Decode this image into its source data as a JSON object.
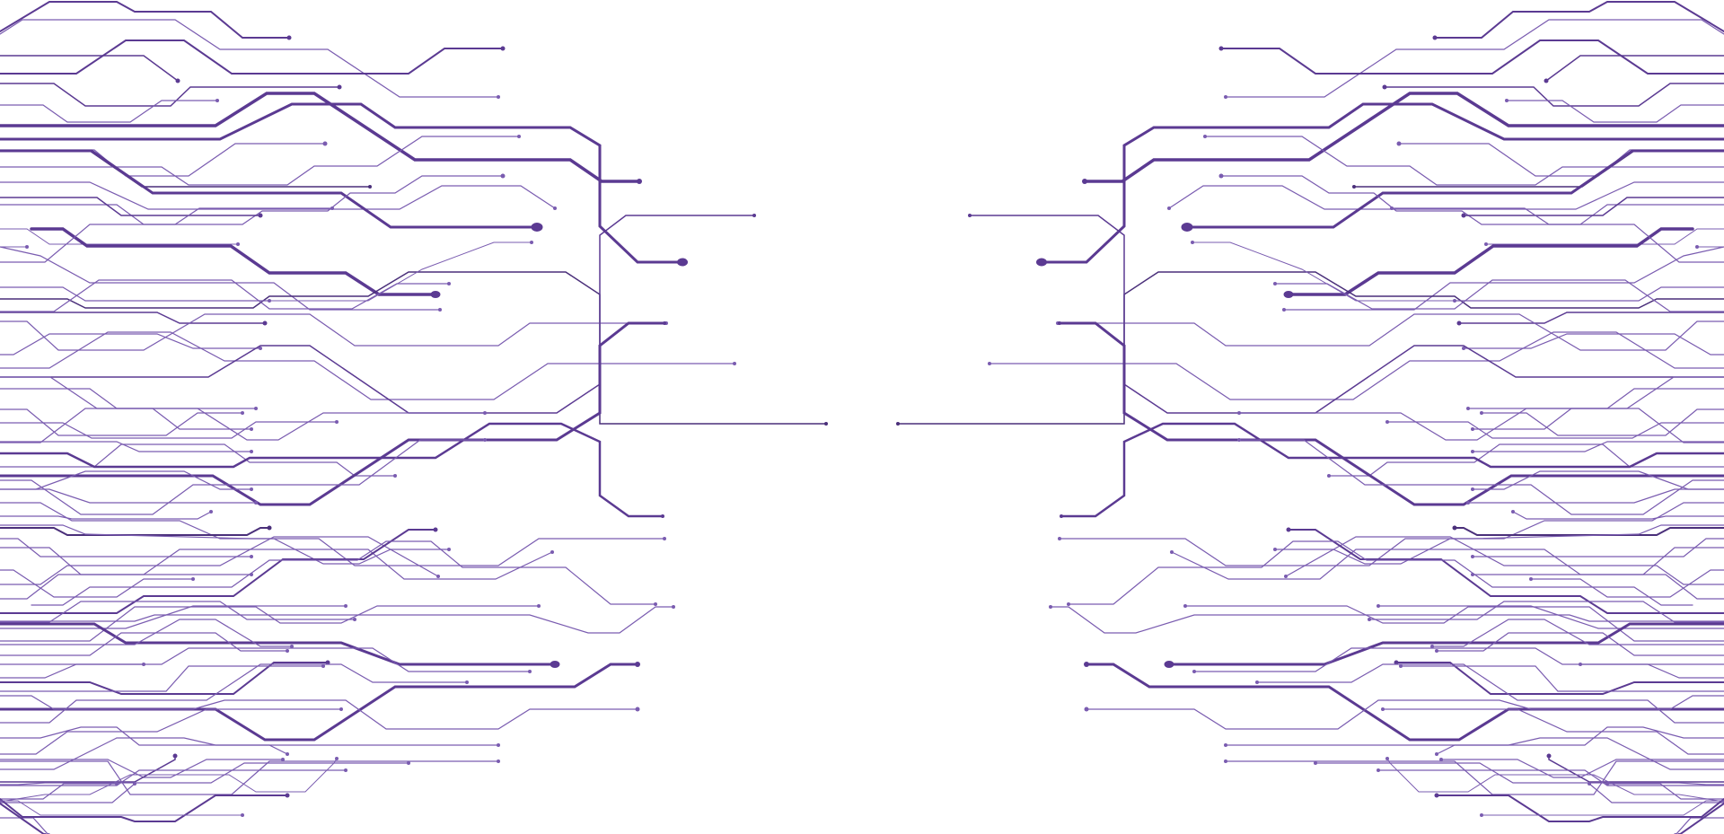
{
  "artwork": {
    "subject": "circuit-traces",
    "palette": {
      "background": "#ffffff",
      "trace_dark": "#4a2f7a",
      "trace_mid": "#5b3a92",
      "trace_light": "#7a5cb0"
    },
    "symmetry": "mirrored-left-right"
  }
}
